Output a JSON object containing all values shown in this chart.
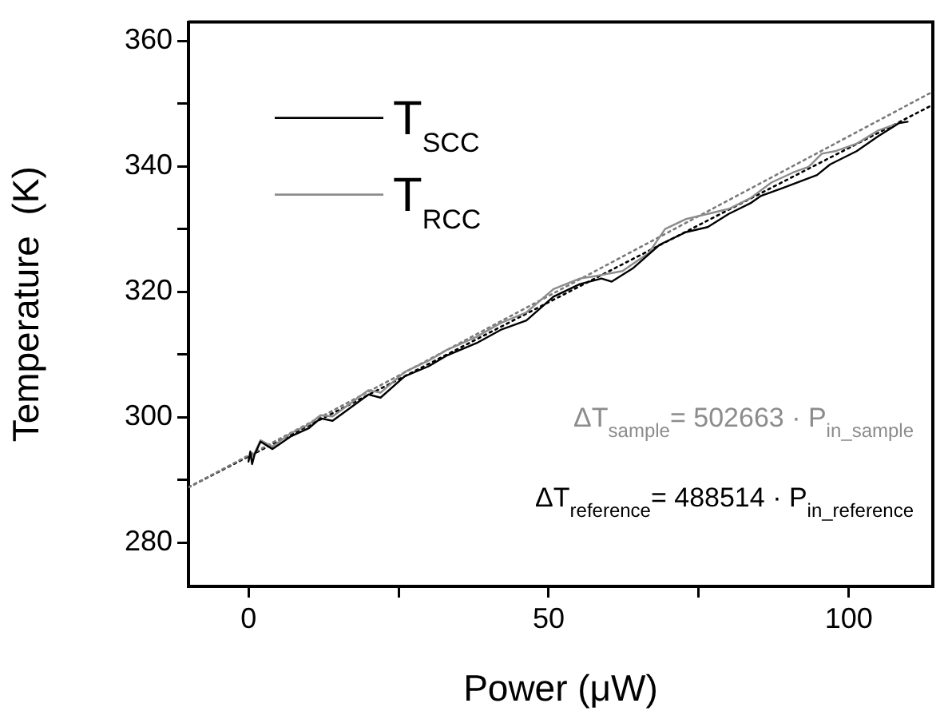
{
  "chart_data": {
    "type": "line",
    "xlabel": "Power (μW)",
    "ylabel": "Temperature  (K)",
    "xlim": [
      -10,
      114
    ],
    "ylim": [
      273,
      363
    ],
    "xticks": [
      0,
      {
        "value": 25,
        "label": null
      },
      50,
      {
        "value": 75,
        "label": null
      },
      100
    ],
    "yticks": [
      280,
      {
        "value": 290,
        "label": null
      },
      300,
      {
        "value": 310,
        "label": null
      },
      320,
      {
        "value": 330,
        "label": null
      },
      340,
      {
        "value": 350,
        "label": null
      },
      360
    ],
    "grid": false,
    "legend": "top left",
    "marker": "none",
    "line_style": "solid",
    "series": [
      {
        "name": "T$_{SCC}$",
        "color": "#000000",
        "x": [
          0,
          0.3,
          0.6,
          1,
          2,
          4,
          7,
          10,
          12,
          14,
          17,
          20,
          22,
          26,
          30,
          33,
          38,
          42,
          46.3,
          50.8,
          55.2,
          58.8,
          60.5,
          64,
          68.5,
          72.9,
          76.5,
          80,
          83.6,
          85.4,
          88.9,
          92.5,
          94.7,
          96.9,
          101.3,
          104.9,
          108.4,
          109.8
        ],
        "values": [
          292.9,
          294.5,
          292.5,
          294,
          296.1,
          294.9,
          296.9,
          298.2,
          299.8,
          299.4,
          301.5,
          303.6,
          303.1,
          306.5,
          308.1,
          309.8,
          311.8,
          313.9,
          315.4,
          319.2,
          321.2,
          322.1,
          321.6,
          323.7,
          327.5,
          329.5,
          330.3,
          332.4,
          334.1,
          335.3,
          336.5,
          337.8,
          338.6,
          340.3,
          342.4,
          344.8,
          346.9,
          347.1
        ]
      },
      {
        "name": "T$_{RCC}$",
        "color": "#8c8c8c",
        "x": [
          0,
          1,
          2,
          4,
          7,
          10,
          12,
          14,
          17,
          20,
          22,
          26,
          30,
          33,
          38,
          42,
          46.3,
          50.8,
          55.2,
          57.9,
          62.3,
          66.7,
          69.4,
          72.9,
          76.5,
          80,
          83.6,
          87.1,
          90.7,
          93.3,
          95.5,
          97.7,
          101.3,
          104.9,
          108.4
        ],
        "values": [
          293.2,
          294.2,
          296.3,
          295.3,
          297.4,
          298.8,
          300.3,
          300.1,
          302.2,
          304.3,
          303.9,
          307.2,
          309,
          310.7,
          312.8,
          315,
          316.7,
          320.4,
          322.1,
          322.5,
          323.3,
          326.2,
          330,
          331.6,
          332.4,
          333.2,
          334.9,
          337.4,
          339,
          339.9,
          342,
          342.4,
          343.6,
          345.7,
          346.9
        ]
      },
      {
        "color": "#7a7a7a",
        "line_style": "dotted",
        "x": [
          -10,
          114
        ],
        "values": [
          288.8,
          351.9
        ]
      },
      {
        "color": "#000000",
        "line_style": "dotted",
        "x": [
          -10,
          114
        ],
        "values": [
          288.8,
          349.8
        ]
      }
    ],
    "annotations": [
      "ΔT$_{sample}$= 502663 · P$_{in_sample}$",
      "ΔT$_{reference}$= 488514 · P$_{in_reference}$"
    ]
  }
}
